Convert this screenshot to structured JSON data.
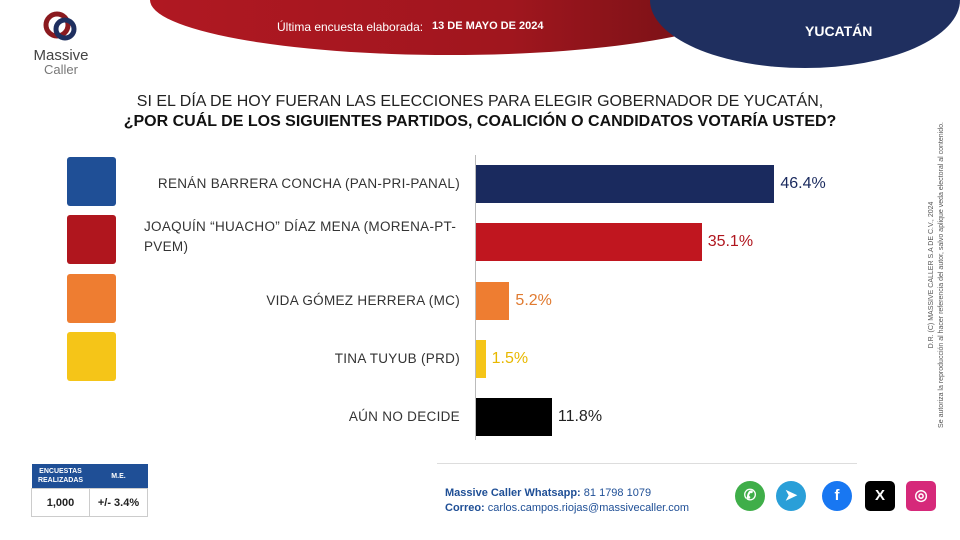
{
  "header": {
    "survey_label": "Última encuesta elaborada:",
    "survey_date": "13 DE MAYO DE 2024",
    "region": "YUCATÁN"
  },
  "logo": {
    "line1": "Massive",
    "line2": "Caller"
  },
  "question": {
    "line1": "SI EL DÍA DE HOY FUERAN LAS ELECCIONES PARA ELEGIR GOBERNADOR DE YUCATÁN,",
    "line2": "¿POR CUÁL DE LOS SIGUIENTES PARTIDOS, COALICIÓN  O CANDIDATOS VOTARÍA USTED?"
  },
  "chart_data": {
    "type": "bar",
    "orientation": "horizontal",
    "categories": [
      "RENÁN BARRERA CONCHA  (PAN-PRI-PANAL)",
      "JOAQUÍN “HUACHO” DÍAZ MENA  (MORENA-PT-PVEM)",
      "VIDA GÓMEZ HERRERA (MC)",
      "TINA TUYUB (PRD)",
      "AÚN NO DECIDE"
    ],
    "values": [
      46.4,
      35.1,
      5.2,
      1.5,
      11.8
    ],
    "value_labels": [
      "46.4%",
      "35.1%",
      "5.2%",
      "1.5%",
      "11.8%"
    ],
    "colors": [
      "#1a2a5e",
      "#c0161f",
      "#ee7d31",
      "#f5c518",
      "#000000"
    ],
    "label_colors": [
      "#1a2a5e",
      "#b0161e",
      "#e07a30",
      "#e8b800",
      "#222222"
    ],
    "party_logo_colors": [
      "#1f4f96",
      "#b0161e",
      "#ee7d31",
      "#f5c518"
    ],
    "xlim": [
      0,
      100
    ]
  },
  "side_note": {
    "line1": "D.R. (C) MASSIVE CALLER S.A DE C.V., 2024",
    "line2": "Se autoriza la reproducción al hacer referencia del autor, salvo aplique veda electoral al contenido."
  },
  "stats": {
    "col1": "ENCUESTAS REALIZADAS",
    "col2": "M.E.",
    "surveys": "1,000",
    "margin": "+/- 3.4%"
  },
  "contact": {
    "wa_label": "Massive Caller Whatsapp:",
    "wa": "81 1798 1079",
    "mail_label": "Correo:",
    "mail": "carlos.campos.riojas@massivecaller.com"
  },
  "social": [
    {
      "icon": "whatsapp-icon",
      "glyph": "✆",
      "color": "#3fae49"
    },
    {
      "icon": "telegram-icon",
      "glyph": "➤",
      "color": "#2a9fd8"
    },
    {
      "icon": "facebook-icon",
      "glyph": "f",
      "color": "#1877f2"
    },
    {
      "icon": "x-icon",
      "glyph": "X",
      "color": "#000"
    },
    {
      "icon": "instagram-icon",
      "glyph": "◎",
      "color": "#d6297a"
    }
  ]
}
